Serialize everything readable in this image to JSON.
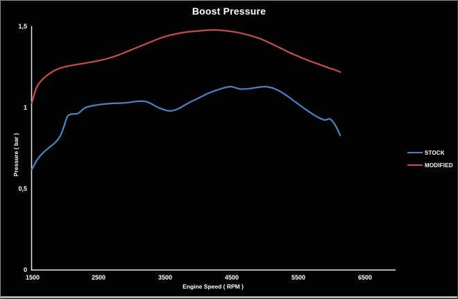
{
  "chart_data": {
    "type": "line",
    "title": "Boost Pressure",
    "xlabel": "Engine Speed ( RPM )",
    "ylabel": "Pressure ( bar )",
    "xlim": [
      1500,
      6950
    ],
    "ylim": [
      0,
      1.5
    ],
    "x_ticks": [
      1500,
      2500,
      3500,
      4500,
      5500,
      6500
    ],
    "x_tick_labels": [
      "1500",
      "2500",
      "3500",
      "4500",
      "5500",
      "6500"
    ],
    "y_ticks": [
      1.5,
      1,
      0.5,
      0
    ],
    "y_tick_labels": [
      "1,5",
      "1",
      "0,5",
      "0"
    ],
    "grid": false,
    "legend_position": "right",
    "background_color": "#000000",
    "text_color": "#ffffff",
    "axis_color": "#e8e8e8",
    "series": [
      {
        "name": "STOCK",
        "color": "#4f81bd",
        "points": [
          [
            1500,
            0.62
          ],
          [
            1580,
            0.68
          ],
          [
            1660,
            0.72
          ],
          [
            1760,
            0.755
          ],
          [
            1860,
            0.79
          ],
          [
            1930,
            0.83
          ],
          [
            1985,
            0.89
          ],
          [
            2030,
            0.945
          ],
          [
            2090,
            0.96
          ],
          [
            2190,
            0.965
          ],
          [
            2300,
            1.0
          ],
          [
            2450,
            1.015
          ],
          [
            2650,
            1.025
          ],
          [
            2900,
            1.03
          ],
          [
            3100,
            1.04
          ],
          [
            3230,
            1.035
          ],
          [
            3400,
            1.0
          ],
          [
            3560,
            0.98
          ],
          [
            3700,
            0.995
          ],
          [
            3850,
            1.03
          ],
          [
            4000,
            1.06
          ],
          [
            4150,
            1.09
          ],
          [
            4320,
            1.115
          ],
          [
            4480,
            1.13
          ],
          [
            4630,
            1.115
          ],
          [
            4800,
            1.12
          ],
          [
            4990,
            1.13
          ],
          [
            5150,
            1.115
          ],
          [
            5300,
            1.08
          ],
          [
            5450,
            1.035
          ],
          [
            5600,
            0.99
          ],
          [
            5750,
            0.95
          ],
          [
            5880,
            0.925
          ],
          [
            5970,
            0.93
          ],
          [
            6050,
            0.89
          ],
          [
            6120,
            0.83
          ]
        ]
      },
      {
        "name": "MODIFIED",
        "color": "#c0504d",
        "points": [
          [
            1500,
            1.03
          ],
          [
            1545,
            1.095
          ],
          [
            1590,
            1.14
          ],
          [
            1660,
            1.175
          ],
          [
            1730,
            1.2
          ],
          [
            1820,
            1.225
          ],
          [
            1930,
            1.245
          ],
          [
            2060,
            1.258
          ],
          [
            2200,
            1.268
          ],
          [
            2350,
            1.278
          ],
          [
            2500,
            1.29
          ],
          [
            2650,
            1.305
          ],
          [
            2800,
            1.325
          ],
          [
            2950,
            1.35
          ],
          [
            3100,
            1.375
          ],
          [
            3250,
            1.4
          ],
          [
            3400,
            1.425
          ],
          [
            3550,
            1.445
          ],
          [
            3700,
            1.458
          ],
          [
            3850,
            1.468
          ],
          [
            4000,
            1.473
          ],
          [
            4150,
            1.478
          ],
          [
            4300,
            1.478
          ],
          [
            4450,
            1.472
          ],
          [
            4600,
            1.462
          ],
          [
            4750,
            1.447
          ],
          [
            4900,
            1.428
          ],
          [
            5050,
            1.402
          ],
          [
            5200,
            1.372
          ],
          [
            5350,
            1.342
          ],
          [
            5500,
            1.315
          ],
          [
            5650,
            1.29
          ],
          [
            5800,
            1.268
          ],
          [
            5950,
            1.245
          ],
          [
            6050,
            1.232
          ],
          [
            6120,
            1.22
          ]
        ]
      }
    ]
  }
}
